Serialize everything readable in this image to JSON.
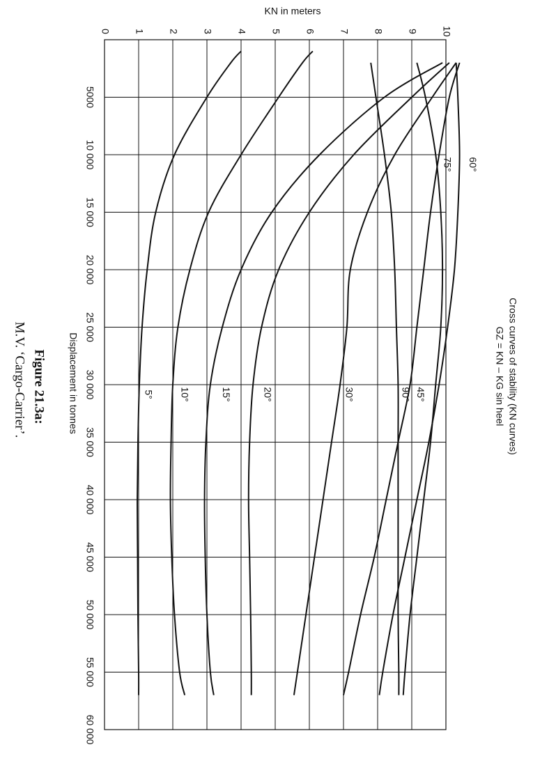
{
  "chart_data": {
    "type": "line",
    "title": "Cross curves of stability (KN curves)",
    "subtitle": "GZ = KN – KG sin heel",
    "x_label": "Displacement in tonnes",
    "y_label": "KN in meters",
    "caption_title": "Figure 21.3a:",
    "caption": "M.V. ‘Cargo-Carrier’.",
    "grid": true,
    "color": "#111111",
    "xlim": [
      0,
      60000
    ],
    "ylim": [
      0,
      10
    ],
    "xticks": [
      5000,
      {
        "value": 10000,
        "label": "10 000"
      },
      {
        "value": 15000,
        "label": "15 000"
      },
      {
        "value": 20000,
        "label": "20 000"
      },
      {
        "value": 25000,
        "label": "25 000"
      },
      {
        "value": 30000,
        "label": "30 000"
      },
      {
        "value": 35000,
        "label": "35 000"
      },
      {
        "value": 40000,
        "label": "40 000"
      },
      {
        "value": 45000,
        "label": "45 000"
      },
      {
        "value": 50000,
        "label": "50 000"
      },
      {
        "value": 55000,
        "label": "55 000"
      },
      {
        "value": 60000,
        "label": "60 000"
      }
    ],
    "yticks": [
      0,
      1,
      2,
      3,
      4,
      5,
      6,
      7,
      8,
      9,
      10
    ],
    "x": [
      1000,
      2000,
      5000,
      10000,
      15000,
      20000,
      25000,
      30000,
      35000,
      40000,
      45000,
      50000,
      55000,
      57000
    ],
    "series": [
      {
        "name": "5°",
        "values": [
          4.0,
          3.7,
          3.0,
          2.05,
          1.5,
          1.25,
          1.1,
          1.02,
          0.98,
          0.96,
          0.97,
          0.98,
          1.0,
          1.0
        ]
      },
      {
        "name": "10°",
        "values": [
          6.1,
          5.8,
          5.1,
          4.0,
          3.05,
          2.5,
          2.15,
          2.0,
          1.95,
          1.93,
          1.97,
          2.05,
          2.2,
          2.35
        ]
      },
      {
        "name": "15°",
        "values": [
          null,
          9.9,
          8.2,
          6.3,
          4.9,
          4.0,
          3.45,
          3.1,
          2.97,
          2.93,
          2.95,
          3.0,
          3.1,
          3.2
        ]
      },
      {
        "name": "20°",
        "values": [
          null,
          10.1,
          9.0,
          7.3,
          6.0,
          5.1,
          4.6,
          4.35,
          4.25,
          4.22,
          4.25,
          4.28,
          4.3,
          4.3
        ]
      },
      {
        "name": "30°",
        "values": [
          null,
          10.3,
          9.6,
          8.5,
          7.7,
          7.2,
          7.1,
          6.9,
          6.65,
          6.4,
          6.15,
          5.9,
          5.65,
          5.55
        ]
      },
      {
        "name": "45°",
        "values": [
          null,
          10.4,
          10.1,
          9.8,
          9.55,
          9.35,
          9.15,
          8.95,
          8.6,
          8.25,
          7.9,
          7.5,
          7.15,
          7.0
        ]
      },
      {
        "name": "60°",
        "values": [
          null,
          10.3,
          10.35,
          10.4,
          10.35,
          10.25,
          10.05,
          9.8,
          9.5,
          9.15,
          8.8,
          8.45,
          8.15,
          8.05
        ]
      },
      {
        "name": "75°",
        "values": [
          null,
          9.15,
          9.4,
          9.7,
          9.85,
          9.9,
          9.85,
          9.7,
          9.55,
          9.35,
          9.15,
          8.95,
          8.8,
          8.75
        ]
      },
      {
        "name": "90°",
        "values": [
          null,
          7.8,
          7.95,
          8.2,
          8.4,
          8.5,
          8.55,
          8.6,
          8.6,
          8.6,
          8.6,
          8.6,
          8.62,
          8.62
        ]
      }
    ]
  }
}
